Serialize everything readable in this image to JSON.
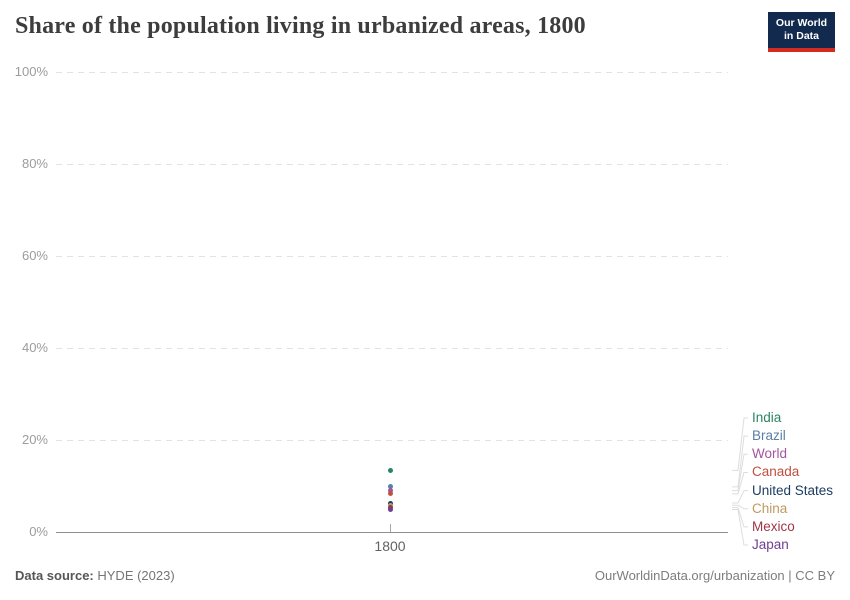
{
  "header": {
    "title": "Share of the population living in urbanized areas, 1800",
    "logo_line1": "Our World",
    "logo_line2": "in Data"
  },
  "chart_data": {
    "type": "scatter",
    "title": "Share of the population living in urbanized areas, 1800",
    "x": [
      1800
    ],
    "x_tick_label": "1800",
    "xlabel": "",
    "ylabel": "",
    "unit": "%",
    "ylim": [
      0,
      100
    ],
    "grid": "horizontal-dashed",
    "legend_position": "right",
    "y_ticks": [
      {
        "value": 100,
        "label": "100%"
      },
      {
        "value": 80,
        "label": "80%"
      },
      {
        "value": 60,
        "label": "60%"
      },
      {
        "value": 40,
        "label": "40%"
      },
      {
        "value": 20,
        "label": "20%"
      },
      {
        "value": 0,
        "label": "0%"
      }
    ],
    "series": [
      {
        "name": "India",
        "color": "#2C8465",
        "values": [
          13.3
        ]
      },
      {
        "name": "Brazil",
        "color": "#5B7FA5",
        "values": [
          9.7
        ]
      },
      {
        "name": "World",
        "color": "#A2559C",
        "values": [
          8.9
        ]
      },
      {
        "name": "Canada",
        "color": "#C0503F",
        "values": [
          8.2
        ]
      },
      {
        "name": "United States",
        "color": "#1D3D63",
        "values": [
          6.2
        ]
      },
      {
        "name": "China",
        "color": "#BE9A60",
        "values": [
          5.7
        ]
      },
      {
        "name": "Mexico",
        "color": "#A03648",
        "values": [
          5.2
        ]
      },
      {
        "name": "Japan",
        "color": "#6D3E91",
        "values": [
          4.8
        ]
      }
    ]
  },
  "footer": {
    "source_label": "Data source:",
    "source_value": "HYDE (2023)",
    "credit": "OurWorldinData.org/urbanization | CC BY"
  },
  "colors": {
    "logo_bg": "#122A4E",
    "logo_red": "#D42B21",
    "axis": "#8f8f8f",
    "grid": "#e2e2e2",
    "tick_label": "#9c9c9c",
    "title": "#3d3d3d"
  }
}
